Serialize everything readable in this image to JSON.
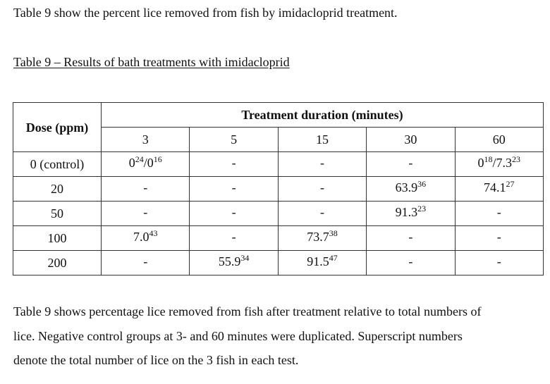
{
  "intro_text": "Table 9 show the percent lice removed from fish by imidacloprid treatment.",
  "table": {
    "caption": "Table 9 – Results of bath treatments with imidacloprid",
    "row_header": "Dose (ppm)",
    "group_header": "Treatment duration (minutes)",
    "durations": [
      "3",
      "5",
      "15",
      "30",
      "60"
    ],
    "rows": [
      {
        "dose": "0 (control)",
        "cells": [
          {
            "parts": [
              {
                "v": "0",
                "s": "24"
              },
              {
                "v": "/0",
                "s": "16"
              }
            ]
          },
          {
            "parts": [
              {
                "v": "-",
                "s": ""
              }
            ]
          },
          {
            "parts": [
              {
                "v": "-",
                "s": ""
              }
            ]
          },
          {
            "parts": [
              {
                "v": "-",
                "s": ""
              }
            ]
          },
          {
            "parts": [
              {
                "v": "0",
                "s": "18"
              },
              {
                "v": "/7.3",
                "s": "23"
              }
            ]
          }
        ]
      },
      {
        "dose": "20",
        "cells": [
          {
            "parts": [
              {
                "v": "-",
                "s": ""
              }
            ]
          },
          {
            "parts": [
              {
                "v": "-",
                "s": ""
              }
            ]
          },
          {
            "parts": [
              {
                "v": "-",
                "s": ""
              }
            ]
          },
          {
            "parts": [
              {
                "v": "63.9",
                "s": "36"
              }
            ]
          },
          {
            "parts": [
              {
                "v": "74.1",
                "s": "27"
              }
            ]
          }
        ]
      },
      {
        "dose": "50",
        "cells": [
          {
            "parts": [
              {
                "v": "-",
                "s": ""
              }
            ]
          },
          {
            "parts": [
              {
                "v": "-",
                "s": ""
              }
            ]
          },
          {
            "parts": [
              {
                "v": "-",
                "s": ""
              }
            ]
          },
          {
            "parts": [
              {
                "v": "91.3",
                "s": "23"
              }
            ]
          },
          {
            "parts": [
              {
                "v": "-",
                "s": ""
              }
            ]
          }
        ]
      },
      {
        "dose": "100",
        "cells": [
          {
            "parts": [
              {
                "v": "7.0",
                "s": "43"
              }
            ]
          },
          {
            "parts": [
              {
                "v": "-",
                "s": ""
              }
            ]
          },
          {
            "parts": [
              {
                "v": "73.7",
                "s": "38"
              }
            ]
          },
          {
            "parts": [
              {
                "v": "-",
                "s": ""
              }
            ]
          },
          {
            "parts": [
              {
                "v": "-",
                "s": ""
              }
            ]
          }
        ]
      },
      {
        "dose": "200",
        "cells": [
          {
            "parts": [
              {
                "v": "-",
                "s": ""
              }
            ]
          },
          {
            "parts": [
              {
                "v": "55.9",
                "s": "34"
              }
            ]
          },
          {
            "parts": [
              {
                "v": "91.5",
                "s": "47"
              }
            ]
          },
          {
            "parts": [
              {
                "v": "-",
                "s": ""
              }
            ]
          },
          {
            "parts": [
              {
                "v": "-",
                "s": ""
              }
            ]
          }
        ]
      }
    ]
  },
  "footnote": {
    "lines": [
      "Table 9 shows percentage lice removed from fish after treatment relative to total numbers of",
      "lice. Negative control groups at 3- and 60 minutes were duplicated. Superscript numbers",
      "denote the total number of lice on the 3 fish in each test."
    ]
  }
}
